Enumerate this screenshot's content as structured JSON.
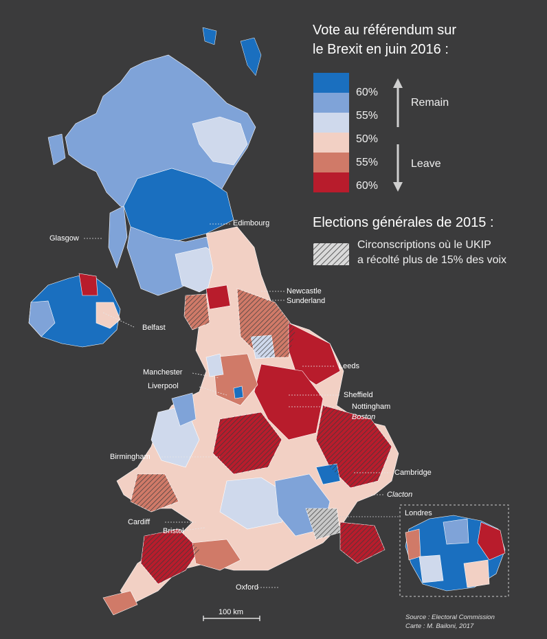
{
  "title": {
    "line1": "Vote au référendum sur",
    "line2": "le Brexit en juin 2016 :"
  },
  "legend": {
    "steps": [
      {
        "label": "60%",
        "color": "#1a6fbf"
      },
      {
        "label": "55%",
        "color": "#7fa3d8"
      },
      {
        "label": "50%",
        "color": "#cfd9ec"
      },
      {
        "label": "55%",
        "color": "#f2d0c4"
      },
      {
        "label": "60%",
        "color": "#d07a68"
      },
      {
        "label": "",
        "color": "#b81c2c"
      }
    ],
    "tick_labels": [
      "60%",
      "55%",
      "50%",
      "55%",
      "60%"
    ],
    "remain": "Remain",
    "leave": "Leave"
  },
  "elections": {
    "title": "Elections générales de 2015 :",
    "hatch_line1": "Circonscriptions où le UKIP",
    "hatch_line2": "a récolté plus de 15% des voix"
  },
  "cities": {
    "edimbourg": "Edimbourg",
    "glasgow": "Glasgow",
    "belfast": "Belfast",
    "newcastle": "Newcastle",
    "sunderland": "Sunderland",
    "leeds": "Leeds",
    "manchester": "Manchester",
    "liverpool": "Liverpool",
    "sheffield": "Sheffield",
    "nottingham": "Nottingham",
    "boston": "Boston",
    "birmingham": "Birmingham",
    "cambridge": "Cambridge",
    "clacton": "Clacton",
    "cardiff": "Cardiff",
    "bristol": "Bristol",
    "oxford": "Oxford",
    "londres": "Londres"
  },
  "scale": "100 km",
  "source": {
    "line1": "Source : Electoral Commission",
    "line2": "Carte : M. Bailoni, 2017"
  },
  "colors": {
    "background": "#3b3b3c",
    "remain_strong": "#1a6fbf",
    "remain_mid": "#7fa3d8",
    "remain_weak": "#cfd9ec",
    "leave_weak": "#f2d0c4",
    "leave_mid": "#d07a68",
    "leave_strong": "#b81c2c"
  }
}
